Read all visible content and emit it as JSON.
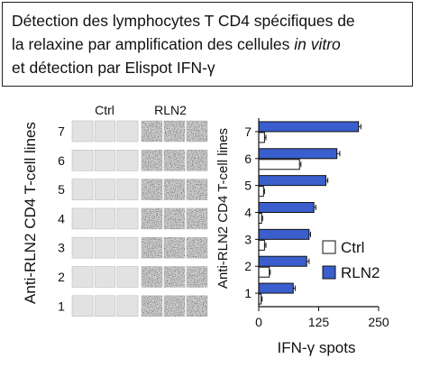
{
  "title": {
    "line1": "Détection des lymphocytes T CD4 spécifiques de",
    "line2_pre": "la relaxine par amplification des cellules ",
    "line2_italic": "in vitro",
    "line3": "et détection par Elispot IFN-γ"
  },
  "elispot_panel": {
    "ylabel": "Anti-RLN2 CD4 T-cell lines",
    "group_labels": [
      "Ctrl",
      "RLN2"
    ],
    "row_labels": [
      "7",
      "6",
      "5",
      "4",
      "3",
      "2",
      "1"
    ]
  },
  "chart_data": {
    "type": "bar",
    "orientation": "horizontal",
    "categories": [
      "1",
      "2",
      "3",
      "4",
      "5",
      "6",
      "7"
    ],
    "series": [
      {
        "name": "Ctrl",
        "values": [
          5,
          22,
          12,
          6,
          10,
          85,
          12
        ],
        "errors": [
          2,
          2,
          3,
          2,
          2,
          3,
          3
        ],
        "color": "#ffffff"
      },
      {
        "name": "RLN2",
        "values": [
          72,
          100,
          105,
          115,
          140,
          163,
          208
        ],
        "errors": [
          4,
          5,
          3,
          4,
          4,
          6,
          5
        ],
        "color": "#3a5fcd"
      }
    ],
    "xlabel": "IFN-γ spots",
    "ylabel": "Anti-RLN2 CD4 T-cell lines",
    "xlim": [
      0,
      250
    ],
    "xticks": [
      "0",
      "125",
      "250"
    ],
    "legend": [
      "Ctrl",
      "RLN2"
    ],
    "legend_position": "right"
  }
}
